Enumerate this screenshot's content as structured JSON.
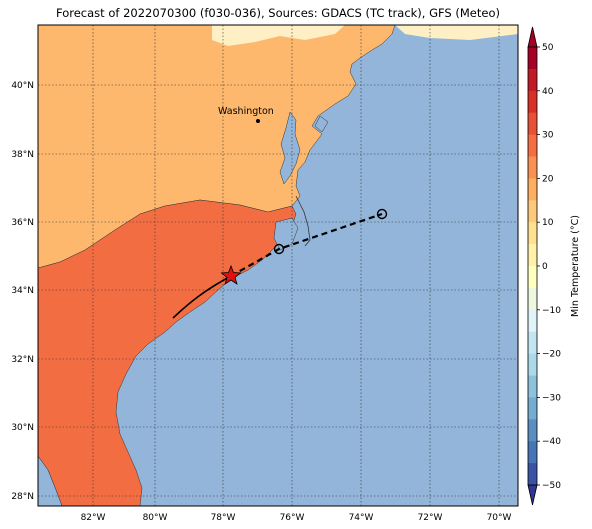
{
  "title": "Forecast of 2022070300 (f030-036), Sources: GDACS (TC track), GFS (Meteo)",
  "map": {
    "lon_ticks": [
      "82°W",
      "80°W",
      "78°W",
      "76°W",
      "74°W",
      "72°W",
      "70°W"
    ],
    "lat_ticks": [
      "40°N",
      "38°N",
      "36°N",
      "34°N",
      "32°N",
      "30°N",
      "28°N"
    ],
    "city": {
      "name": "Washington",
      "marker": "dot"
    },
    "grid": "dotted",
    "colors": {
      "ocean": "#92b5d9",
      "band_10_20": "#fdb86e",
      "band_20_30": "#f36d43",
      "band_0_10": "#fef0c4"
    }
  },
  "track": {
    "observed_style": "solid",
    "forecast_style": "dashed",
    "current_position_marker": "red-star",
    "forecast_markers": "open-circle"
  },
  "colorbar": {
    "label": "Min Temperature (°C)",
    "ticks": [
      "50",
      "40",
      "30",
      "20",
      "10",
      "0",
      "−10",
      "−20",
      "−30",
      "−40",
      "−50"
    ],
    "colors": [
      "#67001f",
      "#b2182b",
      "#d6604d",
      "#f4a582",
      "#fddbc7",
      "#f7f7f7",
      "#d1e5f0",
      "#92c5de",
      "#4393c3",
      "#2166ac",
      "#053061"
    ],
    "band_colors_top_to_bottom": [
      "#a50026",
      "#d73027",
      "#f46d43",
      "#fdae61",
      "#fee090",
      "#ffffbf",
      "#e0f3f8",
      "#abd9e9",
      "#74add1",
      "#4575b4",
      "#313695"
    ]
  }
}
